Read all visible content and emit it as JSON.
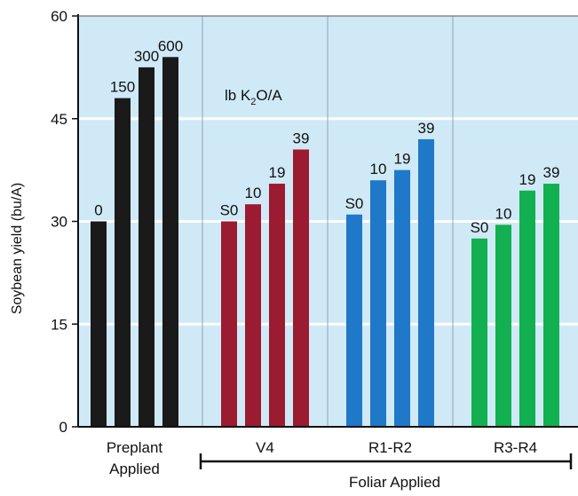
{
  "chart_data": {
    "type": "bar",
    "title": "",
    "ylabel": "Soybean yield (bu/A)",
    "xlabel": "",
    "ylim": [
      0,
      60
    ],
    "yticks": [
      "0",
      "15",
      "30",
      "45",
      "60"
    ],
    "grid": true,
    "annotation": {
      "prefix": "lb K",
      "sub": "2",
      "suffix": "O/A"
    },
    "bracket_label": "Foliar Applied",
    "groups": [
      {
        "label_lines": [
          "Preplant",
          "Applied"
        ],
        "color": "#1a1a1a",
        "bars": [
          {
            "label": "0",
            "value": 30
          },
          {
            "label": "150",
            "value": 48
          },
          {
            "label": "300",
            "value": 52.5
          },
          {
            "label": "600",
            "value": 54
          }
        ]
      },
      {
        "label_lines": [
          "V4"
        ],
        "color": "#9b1b30",
        "bars": [
          {
            "label": "S0",
            "value": 30
          },
          {
            "label": "10",
            "value": 32.5
          },
          {
            "label": "19",
            "value": 35.5
          },
          {
            "label": "39",
            "value": 40.5
          }
        ]
      },
      {
        "label_lines": [
          "R1-R2"
        ],
        "color": "#1f78c8",
        "bars": [
          {
            "label": "S0",
            "value": 31
          },
          {
            "label": "10",
            "value": 36
          },
          {
            "label": "19",
            "value": 37.5
          },
          {
            "label": "39",
            "value": 42
          }
        ]
      },
      {
        "label_lines": [
          "R3-R4"
        ],
        "color": "#12b050",
        "bars": [
          {
            "label": "S0",
            "value": 27.5
          },
          {
            "label": "10",
            "value": 29.5
          },
          {
            "label": "19",
            "value": 34.5
          },
          {
            "label": "39",
            "value": 35.5
          }
        ]
      }
    ],
    "colors": {
      "background": "#cfe9f7",
      "gridline": "#ffffff",
      "divider": "#8aa7b8"
    }
  }
}
